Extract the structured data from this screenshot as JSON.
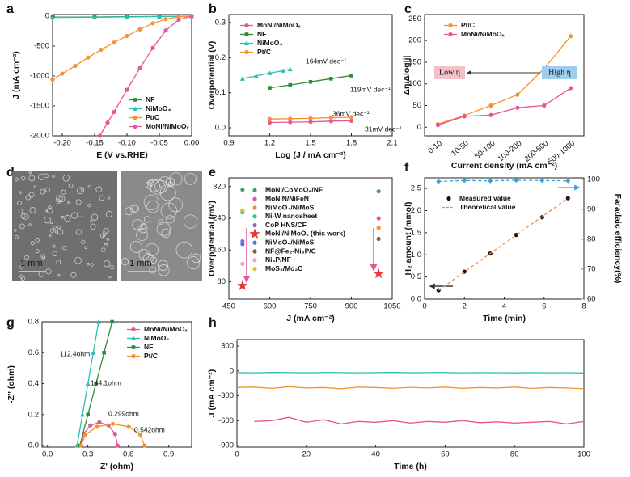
{
  "chart_data": [
    {
      "panel": "a",
      "type": "line",
      "xlabel": "E (V vs.RHE)",
      "ylabel": "J (mA cm⁻²)",
      "xlim": [
        -0.215,
        0.0
      ],
      "ylim": [
        -2000,
        27
      ],
      "xticks": [
        {
          "value": -0.2,
          "label": "-0.20"
        },
        {
          "value": -0.15,
          "label": "-0.15"
        },
        {
          "value": -0.1,
          "label": "-0.10"
        },
        {
          "value": -0.05,
          "label": "-0.05"
        },
        {
          "value": 0,
          "label": "0.00"
        }
      ],
      "yticks": [
        -2000,
        -1500,
        -1000,
        -500,
        0
      ],
      "legend": "lower right",
      "series": [
        {
          "name": "NF",
          "color": "#2e8b3a",
          "marker": "square",
          "x": [
            -0.215,
            -0.15,
            -0.1,
            -0.05,
            0
          ],
          "values": [
            -18,
            -14,
            -10,
            -5,
            0
          ]
        },
        {
          "name": "NiMoO₄",
          "color": "#2bbfb0",
          "marker": "triangle",
          "x": [
            -0.215,
            -0.15,
            -0.1,
            -0.05,
            0
          ],
          "values": [
            -22,
            -17,
            -12,
            -6,
            0
          ]
        },
        {
          "name": "Pt/C",
          "color": "#f5922f",
          "marker": "circle",
          "x": [
            -0.215,
            -0.2,
            -0.18,
            -0.16,
            -0.14,
            -0.12,
            -0.1,
            -0.08,
            -0.06,
            -0.04,
            -0.02,
            0
          ],
          "values": [
            -1060,
            -960,
            -830,
            -690,
            -560,
            -440,
            -330,
            -220,
            -120,
            -50,
            -10,
            0
          ]
        },
        {
          "name": "MoNi/NiMoOₓ",
          "color": "#e8559a",
          "marker": "circle",
          "x": [
            -0.142,
            -0.13,
            -0.12,
            -0.1,
            -0.08,
            -0.06,
            -0.04,
            -0.02,
            0
          ],
          "values": [
            -2000,
            -1780,
            -1600,
            -1230,
            -870,
            -530,
            -240,
            -60,
            0
          ]
        }
      ]
    },
    {
      "panel": "b",
      "type": "line",
      "xlabel": "Log (J / mA cm⁻²)",
      "ylabel": "Overpotential (V)",
      "xlim": [
        0.9,
        2.1
      ],
      "ylim": [
        -0.023,
        0.323
      ],
      "xticks": [
        0.9,
        1.2,
        1.5,
        1.8,
        2.1
      ],
      "yticks": [
        {
          "value": 0,
          "label": "0.0"
        },
        0.1,
        0.2,
        0.3
      ],
      "legend": "upper left",
      "series": [
        {
          "name": "MoNi/NiMoOₓ",
          "color": "#e8559a",
          "marker": "circle",
          "x": [
            1.2,
            1.35,
            1.5,
            1.65,
            1.8
          ],
          "values": [
            0.015,
            0.016,
            0.017,
            0.019,
            0.02
          ]
        },
        {
          "name": "NF",
          "color": "#2e8b3a",
          "marker": "square",
          "x": [
            1.2,
            1.35,
            1.5,
            1.65,
            1.8
          ],
          "values": [
            0.114,
            0.122,
            0.131,
            0.14,
            0.149
          ]
        },
        {
          "name": "NiMoO₄",
          "color": "#2bbfb0",
          "marker": "triangle",
          "x": [
            1.0,
            1.1,
            1.2,
            1.3,
            1.35
          ],
          "values": [
            0.14,
            0.148,
            0.156,
            0.163,
            0.167
          ]
        },
        {
          "name": "Pt/C",
          "color": "#f5922f",
          "marker": "circle",
          "x": [
            1.2,
            1.35,
            1.5,
            1.65,
            1.8
          ],
          "values": [
            0.025,
            0.026,
            0.027,
            0.029,
            0.03
          ]
        }
      ],
      "annotations": [
        {
          "text": "164mV dec⁻¹",
          "color": "#2bbfb0"
        },
        {
          "text": "119mV dec⁻¹",
          "color": "#2e8b3a"
        },
        {
          "text": "36mV dec⁻¹",
          "color": "#f5922f"
        },
        {
          "text": "31mV dec⁻¹",
          "color": "#e8559a"
        }
      ]
    },
    {
      "panel": "c",
      "type": "line",
      "xlabel": "Current density (mA cm⁻²)",
      "ylabel": "Δη/Δlog|j|",
      "categories": [
        "0-10",
        "10-50",
        "50-100",
        "100-200",
        "200-500",
        "500-1000"
      ],
      "ylim": [
        -20,
        260
      ],
      "yticks": [
        0,
        50,
        100,
        150,
        200,
        250
      ],
      "legend": "upper left",
      "series": [
        {
          "name": "Pt/C",
          "color": "#f5922f",
          "marker": "circle",
          "values": [
            7,
            27,
            50,
            75,
            135,
            210
          ]
        },
        {
          "name": "MoNi/NiMoOₓ",
          "color": "#e8559a",
          "marker": "circle",
          "values": [
            5,
            25,
            28,
            45,
            50,
            90
          ]
        }
      ],
      "annotations": [
        {
          "text": "Low η",
          "color": "#f3c1c8"
        },
        {
          "text": "High η",
          "color": "#9fcdee"
        }
      ]
    },
    {
      "panel": "d",
      "type": "image",
      "scale_labels": [
        "1 mm",
        "1 mm"
      ]
    },
    {
      "panel": "e",
      "type": "scatter",
      "xlabel": "J (mA cm⁻²)",
      "ylabel": "Overpotential (mV)",
      "xlim": [
        450,
        1050
      ],
      "ylim": [
        36,
        342
      ],
      "xticks": [
        450,
        600,
        750,
        900,
        1050
      ],
      "yticks": [
        80,
        160,
        240,
        320
      ],
      "legend": "upper left",
      "series": [
        {
          "name": "MoNi/CoMoO₄/NF",
          "color": "#3aa36a",
          "marker": "circle",
          "x": [
            500,
            1000
          ],
          "values": [
            312,
            308
          ]
        },
        {
          "name": "MoNiN/NiFeN",
          "color": "#e8559a",
          "marker": "circle",
          "x": [
            500,
            1000
          ],
          "values": [
            null,
            240
          ]
        },
        {
          "name": "NiMoO₄/NiMoS",
          "color": "#f5922f",
          "marker": "circle",
          "x": [
            500,
            1000
          ],
          "values": [
            null,
            216
          ]
        },
        {
          "name": "Ni-W nanosheet",
          "color": "#2bbfb0",
          "marker": "circle",
          "x": [
            500,
            1000
          ],
          "values": [
            255,
            null
          ]
        },
        {
          "name": "CoP HNS/CF",
          "color": "#8a6fd1",
          "marker": "circle",
          "x": [
            500,
            1000
          ],
          "values": [
            182,
            null
          ]
        },
        {
          "name": "MoNi/NiMoOₓ (this work)",
          "color": "#e53935",
          "marker": "star",
          "x": [
            500,
            1000
          ],
          "values": [
            70,
            100
          ]
        },
        {
          "name": "NiMoO₄/NiMoS",
          "color": "#4a78d0",
          "marker": "circle",
          "x": [
            500,
            1000
          ],
          "values": [
            175,
            null
          ]
        },
        {
          "name": "NF@Fe₂-Ni₃P/C",
          "color": "#8d5a3b",
          "marker": "circle",
          "x": [
            500,
            1000
          ],
          "values": [
            null,
            188
          ]
        },
        {
          "name": "Ni₃P/NF",
          "color": "#f2a0c0",
          "marker": "circle",
          "x": [
            500,
            1000
          ],
          "values": [
            125,
            null
          ]
        },
        {
          "name": "MoS₂/Mo₂C",
          "color": "#e0c020",
          "marker": "circle",
          "x": [
            500,
            1000
          ],
          "values": [
            260,
            null
          ]
        }
      ]
    },
    {
      "panel": "f",
      "type": "line",
      "xlabel": "Time (min)",
      "ylabel": "H₂ amount (mmol)",
      "y2label": "Faradaic efficiency(%)",
      "xlim": [
        0,
        8
      ],
      "ylim": [
        0,
        2.74
      ],
      "y2lim": [
        60,
        100.5
      ],
      "xticks": [
        0,
        2,
        4,
        6,
        8
      ],
      "yticks": [
        {
          "value": 0,
          "label": "0.0"
        },
        0.5,
        {
          "value": 1,
          "label": "1.0"
        },
        1.5,
        {
          "value": 2,
          "label": "2.0"
        },
        2.5
      ],
      "y2ticks": [
        60,
        70,
        80,
        90,
        100
      ],
      "y2color": "#3aa0d8",
      "legend": "upper left",
      "series": [
        {
          "name": "Measured value",
          "color": "#111111",
          "marker": "circle",
          "line": false,
          "x": [
            0.7,
            2,
            3.3,
            4.6,
            5.9,
            7.2
          ],
          "values": [
            0.2,
            0.62,
            1.03,
            1.45,
            1.85,
            2.28
          ]
        },
        {
          "name": "Theoretical value",
          "color": "#f08a50",
          "marker": "none",
          "style": "dashed",
          "x": [
            0.7,
            7.2
          ],
          "values": [
            0.2,
            2.28
          ]
        },
        {
          "color": "#3aa0d8",
          "marker": "diamond",
          "style": "dashed",
          "axis": "y2",
          "x": [
            0.7,
            2,
            3.3,
            4.6,
            5.9,
            7.2
          ],
          "values": [
            99.3,
            99.6,
            99.5,
            99.7,
            99.6,
            99.5
          ]
        }
      ]
    },
    {
      "panel": "g",
      "type": "line",
      "xlabel": "Z' (ohm)",
      "ylabel": "-Z'' (ohm)",
      "xlim": [
        -0.04,
        1.07
      ],
      "ylim": [
        -0.01,
        0.8
      ],
      "xticks": [
        {
          "value": 0,
          "label": "0.0"
        },
        0.3,
        0.6,
        0.9
      ],
      "yticks": [
        {
          "value": 0,
          "label": "0.0"
        },
        0.2,
        0.4,
        0.6,
        0.8
      ],
      "legend": "upper right",
      "series": [
        {
          "name": "MoNi/NiMoOₓ",
          "color": "#e8559a",
          "marker": "circle",
          "x": [
            0.25,
            0.268,
            0.318,
            0.385,
            0.453,
            0.502,
            0.52
          ],
          "values": [
            0,
            0.075,
            0.13,
            0.15,
            0.13,
            0.075,
            0
          ]
        },
        {
          "name": "NiMoO₄",
          "color": "#2bbfb0",
          "marker": "triangle",
          "x": [
            0.22,
            0.26,
            0.3,
            0.34,
            0.38
          ],
          "values": [
            0,
            0.2,
            0.4,
            0.6,
            0.8
          ]
        },
        {
          "name": "NF",
          "color": "#2e8b3a",
          "marker": "square",
          "x": [
            0.24,
            0.3,
            0.36,
            0.42,
            0.48
          ],
          "values": [
            0,
            0.2,
            0.4,
            0.6,
            0.8
          ]
        },
        {
          "name": "Pt/C",
          "color": "#f5922f",
          "marker": "circle",
          "x": [
            0.25,
            0.282,
            0.368,
            0.485,
            0.603,
            0.689,
            0.72
          ],
          "values": [
            0,
            0.07,
            0.121,
            0.14,
            0.121,
            0.07,
            0
          ]
        }
      ],
      "annotations": [
        {
          "text": "112.4ohm",
          "color": "#2bbfb0"
        },
        {
          "text": "144.1ohm",
          "color": "#2e8b3a"
        },
        {
          "text": "0.299ohm",
          "color": "#e8559a"
        },
        {
          "text": "0.542ohm",
          "color": "#f5922f"
        }
      ]
    },
    {
      "panel": "h",
      "type": "line",
      "xlabel": "Time (h)",
      "ylabel": "J (mA cm⁻²)",
      "xlim": [
        0,
        100
      ],
      "ylim": [
        -920,
        380
      ],
      "xticks": [
        0,
        20,
        40,
        60,
        80,
        100
      ],
      "yticks": [
        -900,
        -600,
        -300,
        0,
        300
      ],
      "series": [
        {
          "color": "#2bbfb0",
          "x": [
            0,
            5,
            10,
            15,
            20,
            25,
            30,
            35,
            40,
            45,
            50,
            55,
            60,
            65,
            70,
            75,
            80,
            85,
            90,
            95,
            100
          ],
          "values": [
            -20,
            -22,
            -18,
            -20,
            -21,
            -19,
            -20,
            -22,
            -20,
            -18,
            -21,
            -20,
            -19,
            -22,
            -20,
            -21,
            -23,
            -20,
            -22,
            -21,
            -24
          ]
        },
        {
          "color": "#f5922f",
          "x": [
            0,
            5,
            10,
            15,
            20,
            25,
            30,
            35,
            40,
            45,
            50,
            55,
            60,
            65,
            70,
            75,
            80,
            85,
            90,
            95,
            100
          ],
          "values": [
            -200,
            -195,
            -210,
            -190,
            -205,
            -200,
            -215,
            -195,
            -200,
            -210,
            -198,
            -205,
            -195,
            -210,
            -200,
            -205,
            -195,
            -210,
            -200,
            -205,
            -215
          ]
        },
        {
          "color": "#e8559a",
          "x": [
            0,
            5,
            10,
            15,
            20,
            25,
            30,
            35,
            40,
            45,
            50,
            55,
            60,
            65,
            70,
            75,
            80,
            85,
            90,
            95,
            100
          ],
          "values": [
            null,
            -610,
            -600,
            -560,
            -620,
            -590,
            -640,
            -610,
            -620,
            -600,
            -630,
            -610,
            -620,
            -600,
            -625,
            -615,
            -630,
            -620,
            -610,
            -640,
            -610
          ]
        }
      ]
    }
  ]
}
